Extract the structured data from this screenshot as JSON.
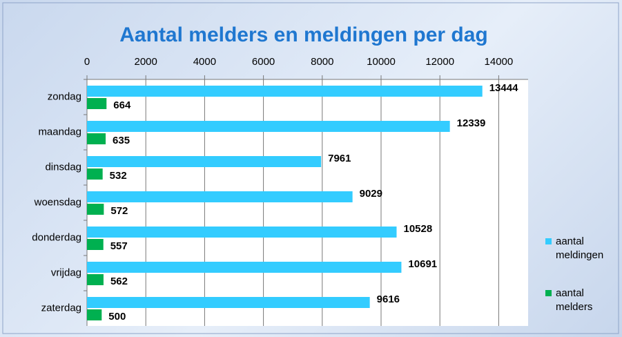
{
  "chart_data": {
    "type": "bar",
    "orientation": "horizontal",
    "title": "Aantal melders  en meldingen per dag",
    "categories": [
      "zondag",
      "maandag",
      "dinsdag",
      "woensdag",
      "donderdag",
      "vrijdag",
      "zaterdag"
    ],
    "series": [
      {
        "name": "aantal meldingen",
        "color": "#33ccff",
        "values": [
          13444,
          12339,
          7961,
          9029,
          10528,
          10691,
          9616
        ]
      },
      {
        "name": "aantal melders",
        "color": "#00b050",
        "values": [
          664,
          635,
          532,
          572,
          557,
          562,
          500
        ]
      }
    ],
    "xlim": [
      0,
      15000
    ],
    "xticks": [
      0,
      2000,
      4000,
      6000,
      8000,
      10000,
      12000,
      14000
    ],
    "grid": true,
    "legend": "right"
  }
}
